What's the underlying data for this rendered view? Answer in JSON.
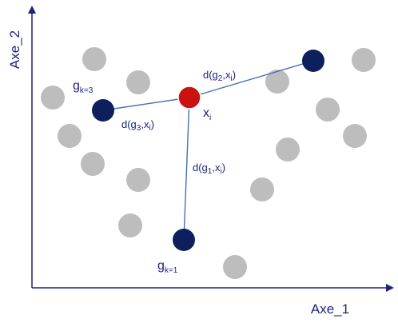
{
  "axes": {
    "x_title": "Axe_1",
    "y_title": "Axe_2"
  },
  "colors": {
    "axis": "#1a237e",
    "data_point": "#bdbdbd",
    "centroid": "#0d1f5c",
    "highlighted_point": "#cc1111",
    "connector": "#4a6fb5"
  },
  "labels": {
    "point": {
      "main": "x",
      "sub": "i"
    },
    "centroid_1": {
      "main": "g",
      "sub": "k=1"
    },
    "centroid_3": {
      "main": "g",
      "sub": "k=3"
    },
    "distance_1": {
      "prefix": "d(g",
      "g_sub": "1",
      "middle": ",x",
      "x_sub": "i",
      "suffix": ")"
    },
    "distance_2": {
      "prefix": "d(g",
      "g_sub": "2",
      "middle": ",x",
      "x_sub": "i",
      "suffix": ")"
    },
    "distance_3": {
      "prefix": "d(g",
      "g_sub": "3",
      "middle": ",x",
      "x_sub": "i",
      "suffix": ")"
    }
  }
}
